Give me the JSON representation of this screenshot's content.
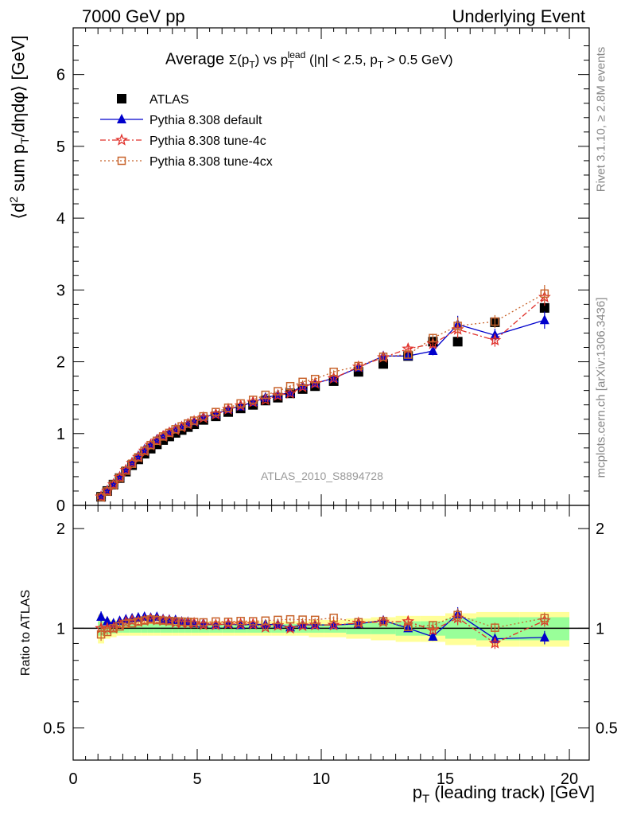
{
  "header": {
    "left": "7000 GeV pp",
    "right": "Underlying Event"
  },
  "side": {
    "rivet": "Rivet 3.1.10, ≥ 2.8M events",
    "mcplots": "mcplots.cern.ch [arXiv:1306.3436]"
  },
  "chart_data": {
    "type": "scatter",
    "analysis_label": "ATLAS_2010_S8894728",
    "title": "Average Σ(pT) vs pT lead (|η| < 2.5, pT > 0.5 GeV)",
    "title_parts": {
      "prefix": "Average ",
      "sigma": "Σ(p",
      "sigma_sub": "T",
      "sigma_close": ")",
      "vs": " vs p",
      "vs_sub": "T",
      "vs_sup": "lead",
      "cut1": " (|η| < 2.5, p",
      "cut_sub": "T",
      "cut2": " > 0.5 GeV)"
    },
    "xlabel": "pT (leading track) [GeV]",
    "xlabel_parts": {
      "main": "p",
      "sub": "T",
      "rest": " (leading track) [GeV]"
    },
    "ylabel": "⟨d2 sum pT/dηdφ⟩ [GeV]",
    "ylabel_parts": {
      "a": "⟨d",
      "sup": "2",
      "b": " sum p",
      "sub": "T",
      "c": "/dηdφ⟩ [GeV]"
    },
    "ratio_ylabel": "Ratio to ATLAS",
    "xlim": [
      0,
      20.8
    ],
    "ylim": [
      0,
      6.65
    ],
    "ratio_ylim": [
      0.4,
      2.35
    ],
    "xticks": [
      "0",
      "5",
      "10",
      "15",
      "20"
    ],
    "yticks": [
      "0",
      "1",
      "2",
      "3",
      "4",
      "5",
      "6"
    ],
    "ratio_yticks": [
      "0.5",
      "1",
      "2"
    ],
    "x": [
      1.125,
      1.375,
      1.625,
      1.875,
      2.125,
      2.375,
      2.625,
      2.875,
      3.125,
      3.375,
      3.625,
      3.875,
      4.125,
      4.375,
      4.625,
      4.875,
      5.25,
      5.75,
      6.25,
      6.75,
      7.25,
      7.75,
      8.25,
      8.75,
      9.25,
      9.75,
      10.5,
      11.5,
      12.5,
      13.5,
      14.5,
      15.5,
      17.0,
      19.0
    ],
    "series": [
      {
        "name": "ATLAS",
        "color": "#000000",
        "marker": "square",
        "values": [
          0.12,
          0.2,
          0.29,
          0.38,
          0.47,
          0.56,
          0.64,
          0.72,
          0.79,
          0.85,
          0.91,
          0.96,
          1.01,
          1.05,
          1.09,
          1.13,
          1.19,
          1.24,
          1.3,
          1.35,
          1.4,
          1.46,
          1.5,
          1.56,
          1.62,
          1.66,
          1.73,
          1.86,
          1.97,
          2.08,
          2.28,
          2.28,
          2.55,
          2.75
        ],
        "band_inner": [
          0.05,
          0.04,
          0.035,
          0.03,
          0.03,
          0.03,
          0.03,
          0.03,
          0.03,
          0.03,
          0.03,
          0.03,
          0.03,
          0.03,
          0.03,
          0.03,
          0.03,
          0.03,
          0.03,
          0.03,
          0.03,
          0.03,
          0.03,
          0.03,
          0.03,
          0.03,
          0.03,
          0.04,
          0.04,
          0.05,
          0.05,
          0.07,
          0.08,
          0.08
        ],
        "band_outer": [
          0.1,
          0.07,
          0.06,
          0.05,
          0.05,
          0.05,
          0.05,
          0.05,
          0.05,
          0.05,
          0.05,
          0.05,
          0.05,
          0.05,
          0.05,
          0.05,
          0.05,
          0.05,
          0.05,
          0.05,
          0.05,
          0.05,
          0.05,
          0.05,
          0.05,
          0.06,
          0.06,
          0.07,
          0.08,
          0.09,
          0.09,
          0.11,
          0.12,
          0.12
        ]
      },
      {
        "name": "Pythia 8.308 default",
        "color": "#0000cc",
        "marker": "triangle",
        "dash": "",
        "values": [
          0.13,
          0.21,
          0.3,
          0.4,
          0.5,
          0.6,
          0.69,
          0.78,
          0.85,
          0.92,
          0.97,
          1.02,
          1.07,
          1.1,
          1.14,
          1.17,
          1.23,
          1.27,
          1.34,
          1.38,
          1.44,
          1.5,
          1.54,
          1.57,
          1.66,
          1.7,
          1.77,
          1.92,
          2.08,
          2.08,
          2.15,
          2.52,
          2.37,
          2.58
        ],
        "errors": [
          0.005,
          0.005,
          0.005,
          0.005,
          0.005,
          0.005,
          0.005,
          0.005,
          0.005,
          0.005,
          0.005,
          0.005,
          0.005,
          0.005,
          0.005,
          0.005,
          0.01,
          0.01,
          0.01,
          0.01,
          0.01,
          0.015,
          0.015,
          0.015,
          0.02,
          0.02,
          0.02,
          0.03,
          0.04,
          0.05,
          0.06,
          0.12,
          0.09,
          0.12
        ]
      },
      {
        "name": "Pythia 8.308 tune-4c",
        "color": "#e0302a",
        "marker": "star",
        "dash": "7 3 2 3",
        "values": [
          0.12,
          0.2,
          0.29,
          0.39,
          0.49,
          0.59,
          0.67,
          0.76,
          0.84,
          0.9,
          0.96,
          1.01,
          1.05,
          1.09,
          1.13,
          1.17,
          1.22,
          1.27,
          1.34,
          1.39,
          1.44,
          1.47,
          1.53,
          1.56,
          1.65,
          1.7,
          1.77,
          1.93,
          2.06,
          2.18,
          2.25,
          2.45,
          2.3,
          2.9
        ],
        "errors": [
          0.005,
          0.005,
          0.005,
          0.005,
          0.005,
          0.005,
          0.005,
          0.005,
          0.005,
          0.005,
          0.005,
          0.005,
          0.005,
          0.005,
          0.005,
          0.005,
          0.01,
          0.01,
          0.01,
          0.01,
          0.01,
          0.015,
          0.015,
          0.015,
          0.02,
          0.02,
          0.02,
          0.03,
          0.04,
          0.05,
          0.06,
          0.12,
          0.09,
          0.12
        ]
      },
      {
        "name": "Pythia 8.308 tune-4cx",
        "color": "#c8642c",
        "marker": "opensquare",
        "dash": "2 3",
        "values": [
          0.115,
          0.195,
          0.29,
          0.385,
          0.485,
          0.58,
          0.67,
          0.76,
          0.84,
          0.9,
          0.96,
          1.01,
          1.06,
          1.1,
          1.14,
          1.18,
          1.24,
          1.3,
          1.36,
          1.42,
          1.47,
          1.54,
          1.59,
          1.66,
          1.72,
          1.76,
          1.86,
          1.94,
          2.07,
          2.1,
          2.33,
          2.5,
          2.56,
          2.95
        ],
        "errors": [
          0.005,
          0.005,
          0.005,
          0.005,
          0.005,
          0.005,
          0.005,
          0.005,
          0.005,
          0.005,
          0.005,
          0.005,
          0.005,
          0.005,
          0.005,
          0.005,
          0.01,
          0.01,
          0.01,
          0.01,
          0.01,
          0.015,
          0.015,
          0.015,
          0.02,
          0.02,
          0.02,
          0.03,
          0.04,
          0.05,
          0.06,
          0.12,
          0.09,
          0.12
        ]
      }
    ],
    "band_colors": {
      "inner": "#99ff99",
      "outer": "#ffff99"
    }
  }
}
